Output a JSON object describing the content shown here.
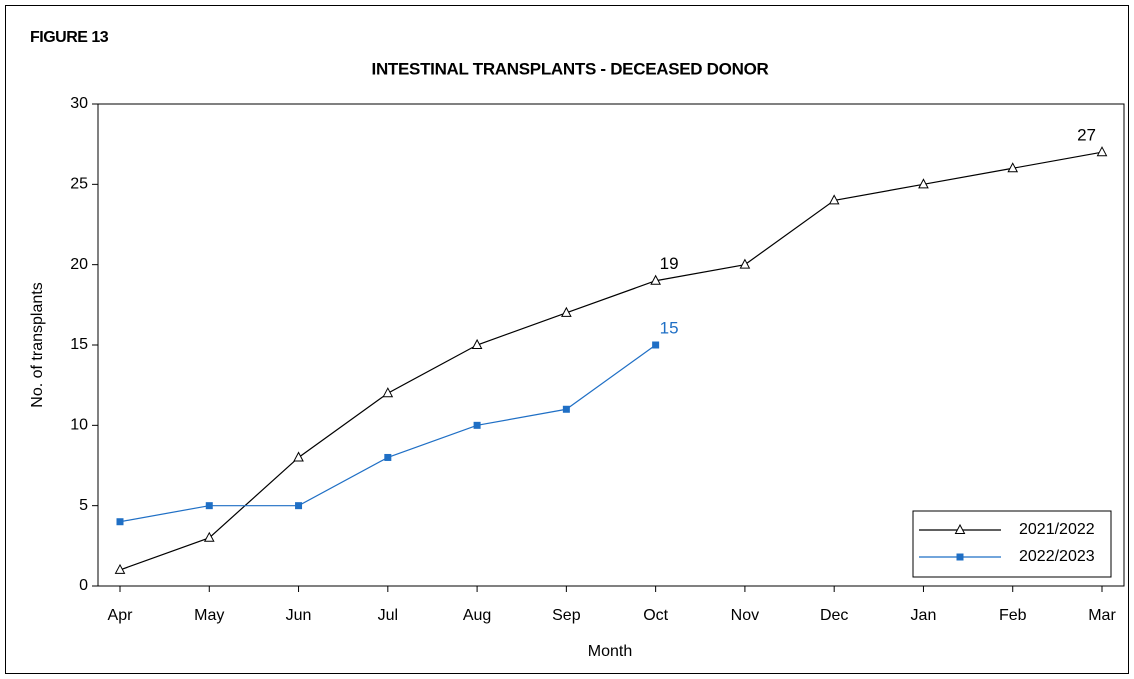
{
  "chart_data": {
    "type": "line",
    "figure_label": "FIGURE 13",
    "title": "INTESTINAL TRANSPLANTS - DECEASED DONOR",
    "xlabel": "Month",
    "ylabel": "No. of transplants",
    "categories": [
      "Apr",
      "May",
      "Jun",
      "Jul",
      "Aug",
      "Sep",
      "Oct",
      "Nov",
      "Dec",
      "Jan",
      "Feb",
      "Mar"
    ],
    "series": [
      {
        "name": "2021/2022",
        "color": "#000000",
        "marker": "triangle",
        "values": [
          1,
          3,
          8,
          12,
          15,
          17,
          19,
          20,
          24,
          25,
          26,
          27
        ],
        "value_labels": [
          null,
          null,
          null,
          null,
          null,
          null,
          "19",
          null,
          null,
          null,
          null,
          "27"
        ]
      },
      {
        "name": "2022/2023",
        "color": "#1f6fc5",
        "marker": "square",
        "values": [
          4,
          5,
          5,
          8,
          10,
          11,
          15,
          null,
          null,
          null,
          null,
          null
        ],
        "value_labels": [
          null,
          null,
          null,
          null,
          null,
          null,
          "15",
          null,
          null,
          null,
          null,
          null
        ]
      }
    ],
    "ylim": [
      0,
      30
    ],
    "yticks": [
      0,
      5,
      10,
      15,
      20,
      25,
      30
    ],
    "legend": "lower right"
  }
}
